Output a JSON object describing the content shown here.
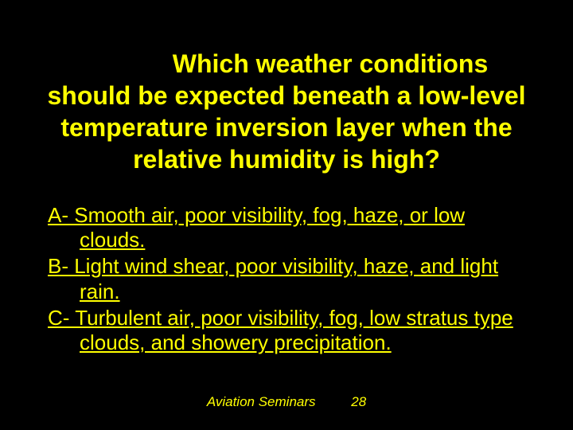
{
  "slide": {
    "question": "Which weather conditions should be expected beneath a low-level temperature inversion layer when the relative humidity is high?",
    "answers": [
      "A- Smooth air, poor visibility, fog, haze, or low clouds.",
      "B- Light wind shear, poor visibility, haze, and light rain.",
      "C- Turbulent air, poor visibility, fog, low stratus type clouds, and showery precipitation."
    ],
    "footer_label": "Aviation Seminars",
    "footer_page": "28",
    "colors": {
      "background": "#000000",
      "text": "#ffff00"
    },
    "typography": {
      "question_fontsize": 32,
      "question_weight": "bold",
      "answer_fontsize": 26,
      "footer_fontsize": 17,
      "footer_style": "italic"
    }
  }
}
